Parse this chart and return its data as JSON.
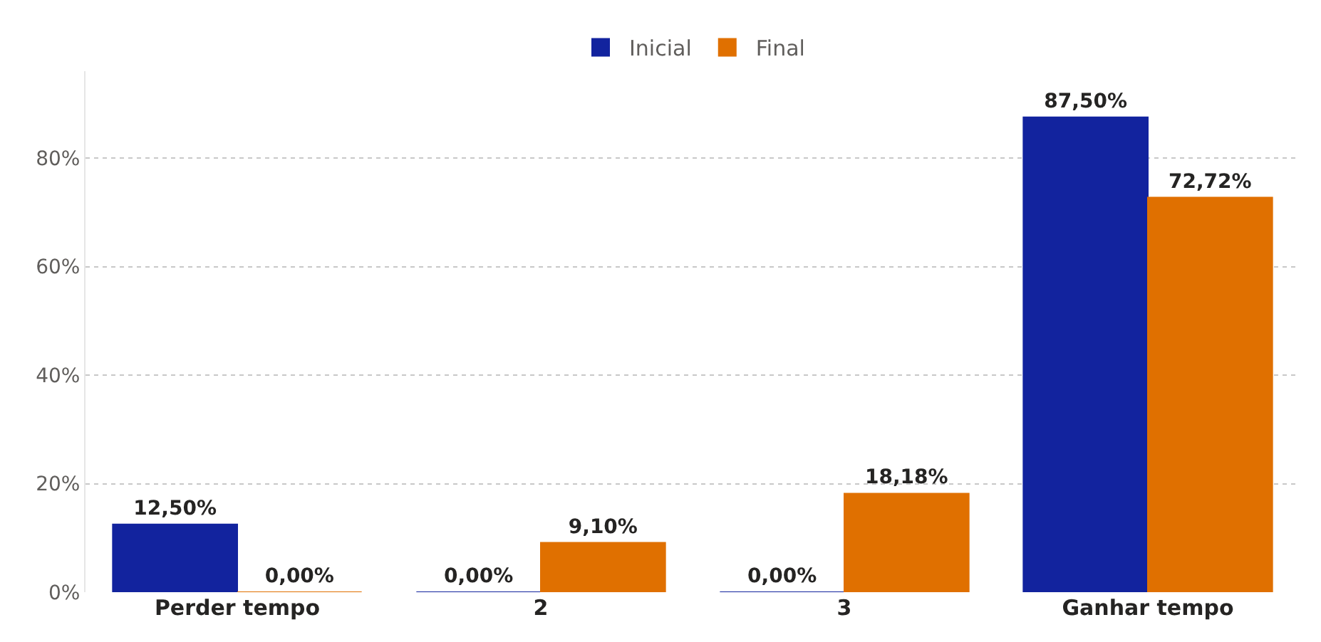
{
  "chart_data": {
    "type": "bar",
    "categories": [
      "Perder tempo",
      "2",
      "3",
      "Ganhar tempo"
    ],
    "series": [
      {
        "name": "Inicial",
        "color": "#12239e",
        "values": [
          12.5,
          0,
          0,
          87.5
        ],
        "value_labels": [
          "12,50%",
          "0,00%",
          "0,00%",
          "87,50%"
        ]
      },
      {
        "name": "Final",
        "color": "#e07000",
        "values": [
          0,
          9.1,
          18.18,
          72.72
        ],
        "value_labels": [
          "0,00%",
          "9,10%",
          "18,18%",
          "72,72%"
        ]
      }
    ],
    "ylim": [
      0,
      96
    ],
    "yticks": [
      {
        "value": 0,
        "label": "0%"
      },
      {
        "value": 20,
        "label": "20%"
      },
      {
        "value": 40,
        "label": "40%"
      },
      {
        "value": 60,
        "label": "60%"
      },
      {
        "value": 80,
        "label": "80%"
      }
    ],
    "grid": "y",
    "legend": "top"
  }
}
